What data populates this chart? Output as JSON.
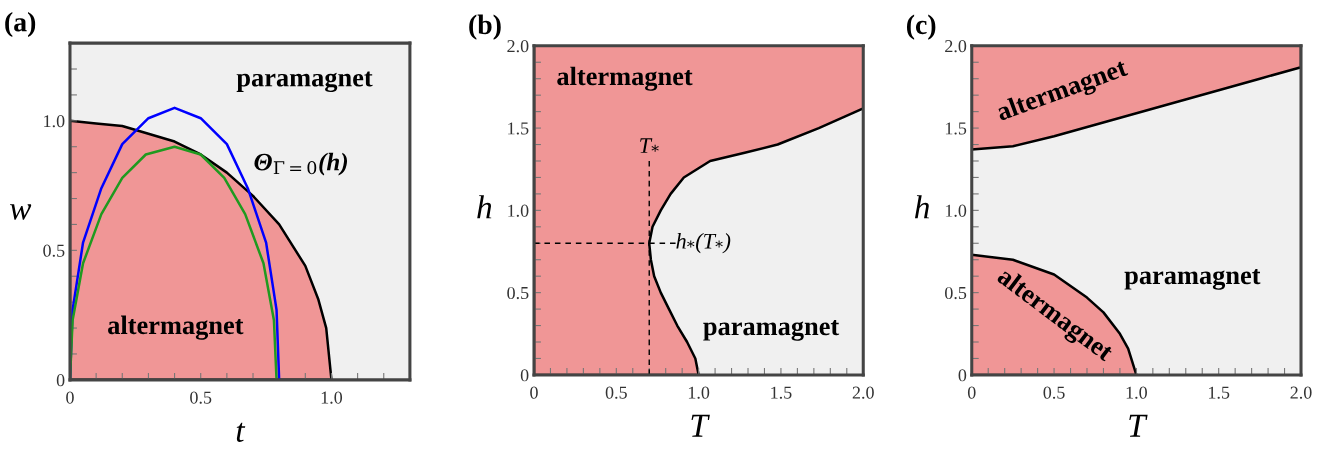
{
  "chart_data": [
    {
      "type": "line",
      "title": "(a)",
      "xlabel": "t",
      "ylabel": "w",
      "xlim": [
        0,
        1.3
      ],
      "ylim": [
        0,
        1.3
      ],
      "xticks": [
        0,
        {
          "value": 0.1,
          "label": null
        },
        {
          "value": 0.2,
          "label": null
        },
        {
          "value": 0.3,
          "label": null
        },
        {
          "value": 0.4,
          "label": null
        },
        0.5,
        {
          "value": 0.6,
          "label": null
        },
        {
          "value": 0.7,
          "label": null
        },
        {
          "value": 0.8,
          "label": null
        },
        {
          "value": 0.9,
          "label": null
        },
        {
          "value": 1,
          "label": "1.0"
        },
        {
          "value": 1.1,
          "label": null
        },
        {
          "value": 1.2,
          "label": null
        }
      ],
      "yticks": [
        0,
        {
          "value": 0.1,
          "label": null
        },
        {
          "value": 0.2,
          "label": null
        },
        {
          "value": 0.3,
          "label": null
        },
        {
          "value": 0.4,
          "label": null
        },
        0.5,
        {
          "value": 0.6,
          "label": null
        },
        {
          "value": 0.7,
          "label": null
        },
        {
          "value": 0.8,
          "label": null
        },
        {
          "value": 0.9,
          "label": null
        },
        {
          "value": 1,
          "label": "1.0"
        },
        {
          "value": 1.1,
          "label": null
        },
        {
          "value": 1.2,
          "label": null
        }
      ],
      "series": [
        {
          "color": "#0000ff",
          "x": [
            0.8,
            0.79,
            0.75,
            0.68,
            0.6,
            0.5,
            0.4,
            0.3,
            0.2,
            0.12,
            0.05,
            0.01,
            0
          ],
          "values": [
            0,
            0.27,
            0.53,
            0.74,
            0.91,
            1.01,
            1.05,
            1.01,
            0.91,
            0.74,
            0.53,
            0.27,
            0
          ]
        },
        {
          "color": "#1f9a1f",
          "x": [
            0.79,
            0.78,
            0.74,
            0.67,
            0.59,
            0.5,
            0.4,
            0.29,
            0.2,
            0.12,
            0.05,
            0.01,
            0
          ],
          "values": [
            0,
            0.23,
            0.45,
            0.64,
            0.78,
            0.87,
            0.9,
            0.87,
            0.78,
            0.64,
            0.45,
            0.23,
            0
          ]
        },
        {
          "type": "area",
          "color": "#f09696",
          "x": [
            0,
            0,
            0.1,
            0.2,
            0.3,
            0.4,
            0.5,
            0.6,
            0.7,
            0.8,
            0.9,
            0.95,
            0.98,
            1
          ],
          "values": [
            0,
            1,
            0.99,
            0.98,
            0.95,
            0.92,
            0.87,
            0.8,
            0.71,
            0.6,
            0.44,
            0.31,
            0.2,
            0
          ]
        }
      ],
      "annotations": [
        "paramagnet",
        "altermagnet",
        "Θ$_{Γ=0}$(h)"
      ]
    },
    {
      "type": "line",
      "title": "(b)",
      "xlabel": "T",
      "ylabel": "h",
      "xlim": [
        0,
        2
      ],
      "ylim": [
        0,
        2
      ],
      "xticks": [
        0,
        {
          "value": 0.1,
          "label": null
        },
        {
          "value": 0.2,
          "label": null
        },
        {
          "value": 0.3,
          "label": null
        },
        {
          "value": 0.4,
          "label": null
        },
        0.5,
        {
          "value": 0.6,
          "label": null
        },
        {
          "value": 0.7,
          "label": null
        },
        {
          "value": 0.8,
          "label": null
        },
        {
          "value": 0.9,
          "label": null
        },
        {
          "value": 1,
          "label": "1.0"
        },
        {
          "value": 1.1,
          "label": null
        },
        {
          "value": 1.2,
          "label": null
        },
        {
          "value": 1.3,
          "label": null
        },
        {
          "value": 1.4,
          "label": null
        },
        1.5,
        {
          "value": 1.6,
          "label": null
        },
        {
          "value": 1.7,
          "label": null
        },
        {
          "value": 1.8,
          "label": null
        },
        {
          "value": 1.9,
          "label": null
        },
        {
          "value": 2,
          "label": "2.0"
        }
      ],
      "yticks": [
        0,
        {
          "value": 0.1,
          "label": null
        },
        {
          "value": 0.2,
          "label": null
        },
        {
          "value": 0.3,
          "label": null
        },
        {
          "value": 0.4,
          "label": null
        },
        0.5,
        {
          "value": 0.6,
          "label": null
        },
        {
          "value": 0.7,
          "label": null
        },
        {
          "value": 0.8,
          "label": null
        },
        {
          "value": 0.9,
          "label": null
        },
        {
          "value": 1,
          "label": "1.0"
        },
        {
          "value": 1.1,
          "label": null
        },
        {
          "value": 1.2,
          "label": null
        },
        {
          "value": 1.3,
          "label": null
        },
        {
          "value": 1.4,
          "label": null
        },
        1.5,
        {
          "value": 1.6,
          "label": null
        },
        {
          "value": 1.7,
          "label": null
        },
        {
          "value": 1.8,
          "label": null
        },
        {
          "value": 1.9,
          "label": null
        },
        {
          "value": 2,
          "label": "2.0"
        }
      ],
      "series": [
        {
          "color": "#000000",
          "line_style": "dashed",
          "x": [
            0.7,
            0.7
          ],
          "values": [
            0,
            1.3
          ]
        },
        {
          "color": "#000000",
          "line_style": "dashed",
          "x": [
            0,
            0.86
          ],
          "values": [
            0.8,
            0.8
          ]
        },
        {
          "type": "area",
          "color": "#f09696",
          "x": [
            0,
            1,
            0.98,
            0.93,
            0.87,
            0.82,
            0.77,
            0.73,
            0.71,
            0.7,
            0.72,
            0.77,
            0.83,
            0.91,
            1.07,
            1.28,
            1.48,
            1.73,
            2,
            2,
            0
          ],
          "values": [
            0,
            0,
            0.1,
            0.2,
            0.3,
            0.4,
            0.5,
            0.6,
            0.7,
            0.8,
            0.9,
            1,
            1.1,
            1.2,
            1.3,
            1.35,
            1.4,
            1.5,
            1.62,
            2,
            2
          ]
        }
      ],
      "annotations": [
        "altermagnet",
        "paramagnet",
        "T$_{*}$",
        "h$_{*}$(T$_{*}$)"
      ]
    },
    {
      "type": "line",
      "title": "(c)",
      "xlabel": "T",
      "ylabel": "h",
      "xlim": [
        0,
        2
      ],
      "ylim": [
        0,
        2
      ],
      "xticks": [
        0,
        {
          "value": 0.1,
          "label": null
        },
        {
          "value": 0.2,
          "label": null
        },
        {
          "value": 0.3,
          "label": null
        },
        {
          "value": 0.4,
          "label": null
        },
        0.5,
        {
          "value": 0.6,
          "label": null
        },
        {
          "value": 0.7,
          "label": null
        },
        {
          "value": 0.8,
          "label": null
        },
        {
          "value": 0.9,
          "label": null
        },
        {
          "value": 1,
          "label": "1.0"
        },
        {
          "value": 1.1,
          "label": null
        },
        {
          "value": 1.2,
          "label": null
        },
        {
          "value": 1.3,
          "label": null
        },
        {
          "value": 1.4,
          "label": null
        },
        1.5,
        {
          "value": 1.6,
          "label": null
        },
        {
          "value": 1.7,
          "label": null
        },
        {
          "value": 1.8,
          "label": null
        },
        {
          "value": 1.9,
          "label": null
        },
        {
          "value": 2,
          "label": "2.0"
        }
      ],
      "yticks": [
        0,
        {
          "value": 0.1,
          "label": null
        },
        {
          "value": 0.2,
          "label": null
        },
        {
          "value": 0.3,
          "label": null
        },
        {
          "value": 0.4,
          "label": null
        },
        0.5,
        {
          "value": 0.6,
          "label": null
        },
        {
          "value": 0.7,
          "label": null
        },
        {
          "value": 0.8,
          "label": null
        },
        {
          "value": 0.9,
          "label": null
        },
        {
          "value": 1,
          "label": "1.0"
        },
        {
          "value": 1.1,
          "label": null
        },
        {
          "value": 1.2,
          "label": null
        },
        {
          "value": 1.3,
          "label": null
        },
        {
          "value": 1.4,
          "label": null
        },
        1.5,
        {
          "value": 1.6,
          "label": null
        },
        {
          "value": 1.7,
          "label": null
        },
        {
          "value": 1.8,
          "label": null
        },
        {
          "value": 1.9,
          "label": null
        },
        {
          "value": 2,
          "label": "2.0"
        }
      ],
      "series": [
        {
          "type": "area",
          "color": "#f09696",
          "x": [
            0,
            0,
            0.25,
            0.5,
            0.75,
            1,
            1.25,
            1.5,
            1.75,
            2,
            2
          ],
          "values": [
            2,
            1.37,
            1.39,
            1.45,
            1.52,
            1.59,
            1.66,
            1.73,
            1.8,
            1.87,
            2
          ]
        },
        {
          "type": "area",
          "color": "#f09696",
          "x": [
            0,
            0,
            0.25,
            0.5,
            0.7,
            0.8,
            0.9,
            0.95,
            1
          ],
          "values": [
            0,
            0.73,
            0.7,
            0.61,
            0.47,
            0.38,
            0.25,
            0.16,
            0
          ]
        }
      ],
      "annotations": [
        "altermagnet",
        "altermagnet",
        "paramagnet"
      ]
    }
  ]
}
